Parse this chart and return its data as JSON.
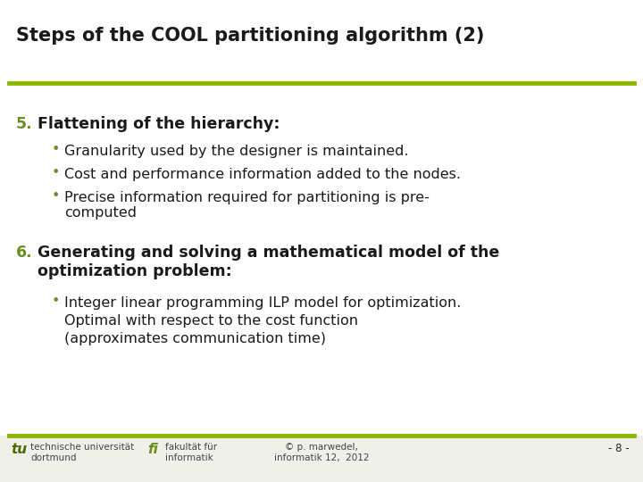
{
  "title": "Steps of the COOL partitioning algorithm (2)",
  "title_color": "#1a1a1a",
  "title_fontsize": 15,
  "olive_color": "#6b8e23",
  "dark_olive": "#4a6b00",
  "line_color": "#8db600",
  "slide_bg": "#f2f2ee",
  "section5_number": "5.",
  "section5_heading": "Flattening of the hierarchy:",
  "section5_number_color": "#6b8e23",
  "section5_bullet1": "Granularity used by the designer is maintained.",
  "section5_bullet2": "Cost and performance information added to the nodes.",
  "section5_bullet3": "Precise information required for partitioning is pre-\ncomputed",
  "section6_number": "6.",
  "section6_heading_bold": "Generating and solving a mathematical model of the\noptimization problem",
  "section6_heading_normal": ":",
  "section6_number_color": "#6b8e23",
  "section6_bullet1_line1": "Integer linear programming ILP model for optimization.",
  "section6_bullet1_line2": "Optimal with respect to the cost function",
  "section6_bullet1_line3": "(approximates communication time)",
  "bullet_color": "#6b8e23",
  "body_fontsize": 11.5,
  "heading_fontsize": 12.5,
  "number_fontsize": 12.5,
  "footer_center": "© p. marwedel,\ninformatik 12,  2012",
  "footer_right": "- 8 -",
  "footer_fontsize": 7.5,
  "white_bg": "#ffffff"
}
